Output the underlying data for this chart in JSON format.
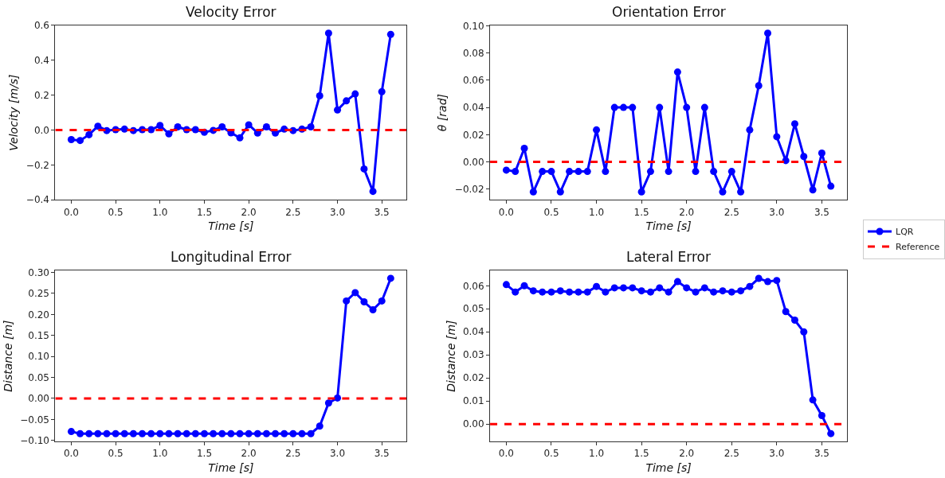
{
  "chart_data": [
    {
      "type": "line",
      "title": "Velocity Error",
      "xlabel": "Time [s]",
      "ylabel": "Velocity [m/s]",
      "legend": "right",
      "marker": "circle",
      "x": [
        0,
        0.1,
        0.2,
        0.3,
        0.4,
        0.5,
        0.6,
        0.7,
        0.8,
        0.9,
        1.0,
        1.1,
        1.2,
        1.3,
        1.4,
        1.5,
        1.6,
        1.7,
        1.8,
        1.9,
        2.0,
        2.1,
        2.2,
        2.3,
        2.4,
        2.5,
        2.6,
        2.7,
        2.8,
        2.9,
        3.0,
        3.1,
        3.2,
        3.3,
        3.4,
        3.5,
        3.6
      ],
      "series": [
        {
          "name": "LQR",
          "color": "#0000ff",
          "values": [
            -0.055,
            -0.06,
            -0.027,
            0.022,
            -0.003,
            0.002,
            0.005,
            -0.003,
            0.002,
            0.002,
            0.026,
            -0.022,
            0.018,
            0.002,
            0.002,
            -0.013,
            -0.002,
            0.018,
            -0.016,
            -0.045,
            0.03,
            -0.017,
            0.018,
            -0.017,
            0.005,
            -0.003,
            0.005,
            0.018,
            0.196,
            0.555,
            0.115,
            0.167,
            0.207,
            -0.223,
            -0.352,
            0.22,
            0.548
          ]
        }
      ],
      "ref_lines": [
        {
          "axis": "y",
          "value": 0,
          "label": "Reference",
          "color": "#ff0000",
          "line_style": "dashed"
        }
      ],
      "xlim": [
        -0.18,
        3.78
      ],
      "xticks": [
        {
          "value": 0,
          "label": "0.0"
        },
        {
          "value": 0.5,
          "label": "0.5"
        },
        {
          "value": 1,
          "label": "1.0"
        },
        {
          "value": 1.5,
          "label": "1.5"
        },
        {
          "value": 2,
          "label": "2.0"
        },
        {
          "value": 2.5,
          "label": "2.5"
        },
        {
          "value": 3,
          "label": "3.0"
        },
        {
          "value": 3.5,
          "label": "3.5"
        }
      ],
      "ylim": [
        -0.4,
        0.6
      ],
      "yticks": [
        {
          "value": -0.4,
          "label": "−0.4"
        },
        {
          "value": -0.2,
          "label": "−0.2"
        },
        {
          "value": 0,
          "label": "0.0"
        },
        {
          "value": 0.2,
          "label": "0.2"
        },
        {
          "value": 0.4,
          "label": "0.4"
        },
        {
          "value": 0.6,
          "label": "0.6"
        }
      ]
    },
    {
      "type": "line",
      "title": "Orientation Error",
      "xlabel": "Time [s]",
      "ylabel": "θ [rad]",
      "marker": "circle",
      "x": [
        0,
        0.1,
        0.2,
        0.3,
        0.4,
        0.5,
        0.6,
        0.7,
        0.8,
        0.9,
        1.0,
        1.1,
        1.2,
        1.3,
        1.4,
        1.5,
        1.6,
        1.7,
        1.8,
        1.9,
        2.0,
        2.1,
        2.2,
        2.3,
        2.4,
        2.5,
        2.6,
        2.7,
        2.8,
        2.9,
        3.0,
        3.1,
        3.2,
        3.3,
        3.4,
        3.5,
        3.6
      ],
      "series": [
        {
          "color": "#0000ff",
          "values": [
            -0.006,
            -0.007,
            0.01,
            -0.022,
            -0.007,
            -0.007,
            -0.022,
            -0.007,
            -0.007,
            -0.007,
            0.0235,
            -0.007,
            0.04,
            0.04,
            0.04,
            -0.022,
            -0.007,
            0.04,
            -0.007,
            0.066,
            0.04,
            -0.007,
            0.04,
            -0.007,
            -0.022,
            -0.007,
            -0.022,
            0.0235,
            0.056,
            0.0945,
            0.0185,
            0.001,
            0.028,
            0.004,
            -0.0205,
            0.0065,
            -0.0178
          ]
        }
      ],
      "ref_lines": [
        {
          "axis": "y",
          "value": 0,
          "color": "#ff0000",
          "line_style": "dashed"
        }
      ],
      "xlim": [
        -0.18,
        3.78
      ],
      "xticks": [
        {
          "value": 0,
          "label": "0.0"
        },
        {
          "value": 0.5,
          "label": "0.5"
        },
        {
          "value": 1,
          "label": "1.0"
        },
        {
          "value": 1.5,
          "label": "1.5"
        },
        {
          "value": 2,
          "label": "2.0"
        },
        {
          "value": 2.5,
          "label": "2.5"
        },
        {
          "value": 3,
          "label": "3.0"
        },
        {
          "value": 3.5,
          "label": "3.5"
        }
      ],
      "ylim": [
        -0.0278,
        0.1003
      ],
      "yticks": [
        {
          "value": -0.02,
          "label": "−0.02"
        },
        {
          "value": 0,
          "label": "0.00"
        },
        {
          "value": 0.02,
          "label": "0.02"
        },
        {
          "value": 0.04,
          "label": "0.04"
        },
        {
          "value": 0.06,
          "label": "0.06"
        },
        {
          "value": 0.08,
          "label": "0.08"
        },
        {
          "value": 0.1,
          "label": "0.10"
        }
      ]
    },
    {
      "type": "line",
      "title": "Longitudinal Error",
      "xlabel": "Time [s]",
      "ylabel": "Distance [m]",
      "marker": "circle",
      "x": [
        0,
        0.1,
        0.2,
        0.3,
        0.4,
        0.5,
        0.6,
        0.7,
        0.8,
        0.9,
        1.0,
        1.1,
        1.2,
        1.3,
        1.4,
        1.5,
        1.6,
        1.7,
        1.8,
        1.9,
        2.0,
        2.1,
        2.2,
        2.3,
        2.4,
        2.5,
        2.6,
        2.7,
        2.8,
        2.9,
        3.0,
        3.1,
        3.2,
        3.3,
        3.4,
        3.5,
        3.6
      ],
      "series": [
        {
          "color": "#0000ff",
          "values": [
            -0.079,
            -0.084,
            -0.084,
            -0.084,
            -0.084,
            -0.084,
            -0.084,
            -0.084,
            -0.084,
            -0.084,
            -0.084,
            -0.084,
            -0.084,
            -0.084,
            -0.084,
            -0.084,
            -0.084,
            -0.084,
            -0.084,
            -0.084,
            -0.084,
            -0.084,
            -0.084,
            -0.084,
            -0.084,
            -0.084,
            -0.084,
            -0.084,
            -0.066,
            -0.011,
            0.001,
            0.232,
            0.252,
            0.23,
            0.211,
            0.232,
            0.286
          ]
        }
      ],
      "ref_lines": [
        {
          "axis": "y",
          "value": 0,
          "color": "#ff0000",
          "line_style": "dashed"
        }
      ],
      "xlim": [
        -0.18,
        3.78
      ],
      "xticks": [
        {
          "value": 0,
          "label": "0.0"
        },
        {
          "value": 0.5,
          "label": "0.5"
        },
        {
          "value": 1,
          "label": "1.0"
        },
        {
          "value": 1.5,
          "label": "1.5"
        },
        {
          "value": 2,
          "label": "2.0"
        },
        {
          "value": 2.5,
          "label": "2.5"
        },
        {
          "value": 3,
          "label": "3.0"
        },
        {
          "value": 3.5,
          "label": "3.5"
        }
      ],
      "ylim": [
        -0.1025,
        0.3045
      ],
      "yticks": [
        {
          "value": -0.1,
          "label": "−0.10"
        },
        {
          "value": -0.05,
          "label": "−0.05"
        },
        {
          "value": 0,
          "label": "0.00"
        },
        {
          "value": 0.05,
          "label": "0.05"
        },
        {
          "value": 0.1,
          "label": "0.10"
        },
        {
          "value": 0.15,
          "label": "0.15"
        },
        {
          "value": 0.2,
          "label": "0.20"
        },
        {
          "value": 0.25,
          "label": "0.25"
        },
        {
          "value": 0.3,
          "label": "0.30"
        }
      ]
    },
    {
      "type": "line",
      "title": "Lateral Error",
      "xlabel": "Time [s]",
      "ylabel": "Distance [m]",
      "marker": "circle",
      "x": [
        0,
        0.1,
        0.2,
        0.3,
        0.4,
        0.5,
        0.6,
        0.7,
        0.8,
        0.9,
        1.0,
        1.1,
        1.2,
        1.3,
        1.4,
        1.5,
        1.6,
        1.7,
        1.8,
        1.9,
        2.0,
        2.1,
        2.2,
        2.3,
        2.4,
        2.5,
        2.6,
        2.7,
        2.8,
        2.9,
        3.0,
        3.1,
        3.2,
        3.3,
        3.4,
        3.5,
        3.6
      ],
      "series": [
        {
          "color": "#0000ff",
          "values": [
            0.0605,
            0.0573,
            0.06,
            0.0578,
            0.0573,
            0.0573,
            0.0578,
            0.0573,
            0.0573,
            0.0573,
            0.0597,
            0.0573,
            0.0591,
            0.0591,
            0.0591,
            0.0578,
            0.0573,
            0.0591,
            0.0573,
            0.0618,
            0.0591,
            0.0573,
            0.0591,
            0.0573,
            0.0578,
            0.0573,
            0.0578,
            0.0597,
            0.0632,
            0.0618,
            0.0623,
            0.0488,
            0.0451,
            0.04,
            0.0105,
            0.0037,
            -0.0041
          ]
        }
      ],
      "ref_lines": [
        {
          "axis": "y",
          "value": 0,
          "color": "#ff0000",
          "line_style": "dashed"
        }
      ],
      "xlim": [
        -0.18,
        3.78
      ],
      "xticks": [
        {
          "value": 0,
          "label": "0.0"
        },
        {
          "value": 0.5,
          "label": "0.5"
        },
        {
          "value": 1,
          "label": "1.0"
        },
        {
          "value": 1.5,
          "label": "1.5"
        },
        {
          "value": 2,
          "label": "2.0"
        },
        {
          "value": 2.5,
          "label": "2.5"
        },
        {
          "value": 3,
          "label": "3.0"
        },
        {
          "value": 3.5,
          "label": "3.5"
        }
      ],
      "ylim": [
        -0.0075,
        0.0666
      ],
      "yticks": [
        {
          "value": 0,
          "label": "0.00"
        },
        {
          "value": 0.01,
          "label": "0.01"
        },
        {
          "value": 0.02,
          "label": "0.02"
        },
        {
          "value": 0.03,
          "label": "0.03"
        },
        {
          "value": 0.04,
          "label": "0.04"
        },
        {
          "value": 0.05,
          "label": "0.05"
        },
        {
          "value": 0.06,
          "label": "0.06"
        }
      ]
    }
  ]
}
